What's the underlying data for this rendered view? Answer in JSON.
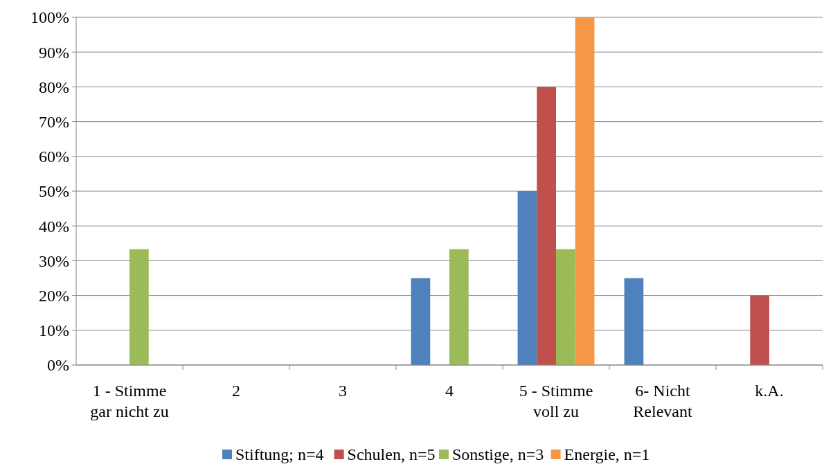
{
  "chart_data": {
    "type": "bar",
    "categories": [
      "1 - Stimme gar nicht zu",
      "2",
      "3",
      "4",
      "5 - Stimme voll zu",
      "6- Nicht Relevant",
      "k.A."
    ],
    "series": [
      {
        "name": "Stiftung; n=4",
        "color": "#4f81bd",
        "values": [
          0,
          0,
          0,
          25,
          50,
          25,
          0
        ]
      },
      {
        "name": "Schulen, n=5",
        "color": "#c0504d",
        "values": [
          0,
          0,
          0,
          0,
          80,
          0,
          20
        ]
      },
      {
        "name": "Sonstige, n=3",
        "color": "#9bbb59",
        "values": [
          33.3,
          0,
          0,
          33.3,
          33.3,
          0,
          0
        ]
      },
      {
        "name": "Energie, n=1",
        "color": "#f79646",
        "values": [
          0,
          0,
          0,
          0,
          100,
          0,
          0
        ]
      }
    ],
    "ylim": [
      0,
      100
    ],
    "yticks": [
      {
        "value": 0,
        "label": "0%"
      },
      {
        "value": 10,
        "label": "10%"
      },
      {
        "value": 20,
        "label": "20%"
      },
      {
        "value": 30,
        "label": "30%"
      },
      {
        "value": 40,
        "label": "40%"
      },
      {
        "value": 50,
        "label": "50%"
      },
      {
        "value": 60,
        "label": "60%"
      },
      {
        "value": 70,
        "label": "70%"
      },
      {
        "value": 80,
        "label": "80%"
      },
      {
        "value": 90,
        "label": "90%"
      },
      {
        "value": 100,
        "label": "100%"
      }
    ],
    "grid": "y",
    "legend": "bottom"
  }
}
